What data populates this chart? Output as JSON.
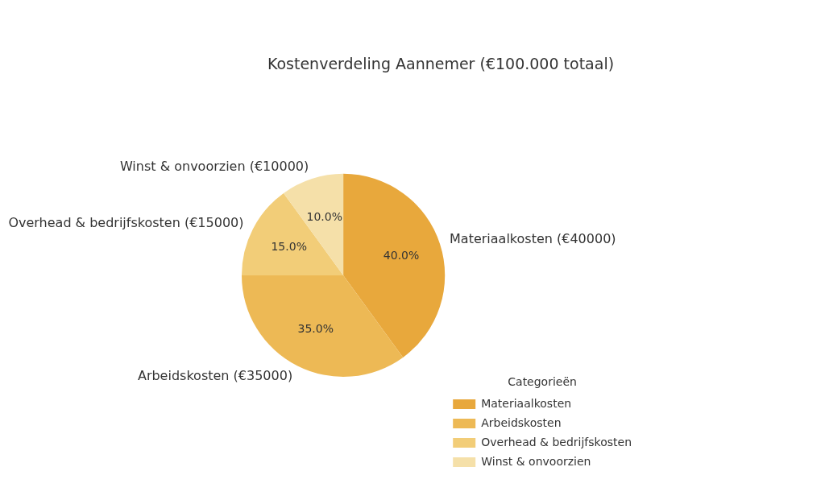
{
  "chart_data": {
    "type": "pie",
    "title": "Kostenverdeling Aannemer (€100.000 totaal)",
    "categories": [
      "Materiaalkosten",
      "Arbeidskosten",
      "Overhead & bedrijfskosten",
      "Winst & onvoorzien"
    ],
    "values": [
      40.0,
      35.0,
      15.0,
      10.0
    ],
    "colors": [
      "#e8a83c",
      "#edb955",
      "#f2cd78",
      "#f5e0a9"
    ],
    "value_labels": [
      "40.0%",
      "35.0%",
      "15.0%",
      "10.0%"
    ],
    "data_labels": true,
    "annotations": [
      "Materiaalkosten (€40000)",
      "Arbeidskosten (€35000)",
      "Overhead & bedrijfskosten (€15000)",
      "Winst & onvoorzien (€10000)"
    ],
    "legend_title": "Categorieën",
    "legend": "bottom right"
  }
}
